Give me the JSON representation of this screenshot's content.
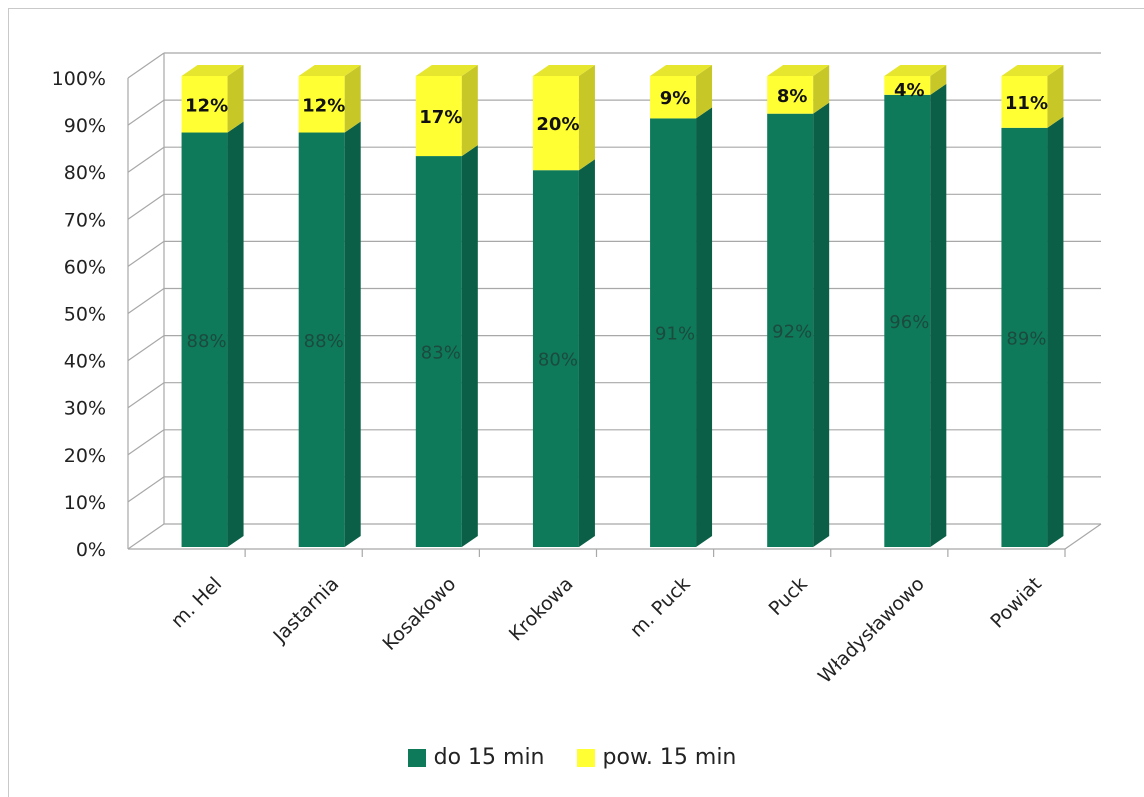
{
  "chart_data": {
    "type": "bar",
    "stacked": true,
    "three_d": true,
    "categories": [
      "m. Hel",
      "Jastarnia",
      "Kosakowo",
      "Krokowa",
      "m. Puck",
      "Puck",
      "Władysławowo",
      "Powiat"
    ],
    "series": [
      {
        "name": "do 15 min",
        "color": "#0e7a5a",
        "values": [
          88,
          88,
          83,
          80,
          91,
          92,
          96,
          89
        ],
        "labels": [
          "88%",
          "88%",
          "83%",
          "80%",
          "91%",
          "92%",
          "96%",
          "89%"
        ]
      },
      {
        "name": "pow. 15 min",
        "color": "#ffff33",
        "values": [
          12,
          12,
          17,
          20,
          9,
          8,
          4,
          11
        ],
        "labels": [
          "12%",
          "12%",
          "17%",
          "20%",
          "9%",
          "8%",
          "4%",
          "11%"
        ]
      }
    ],
    "yticks": [
      "0%",
      "10%",
      "20%",
      "30%",
      "40%",
      "50%",
      "60%",
      "70%",
      "80%",
      "90%",
      "100%"
    ],
    "ylim": [
      0,
      100
    ],
    "grid": true,
    "legend_position": "bottom"
  }
}
